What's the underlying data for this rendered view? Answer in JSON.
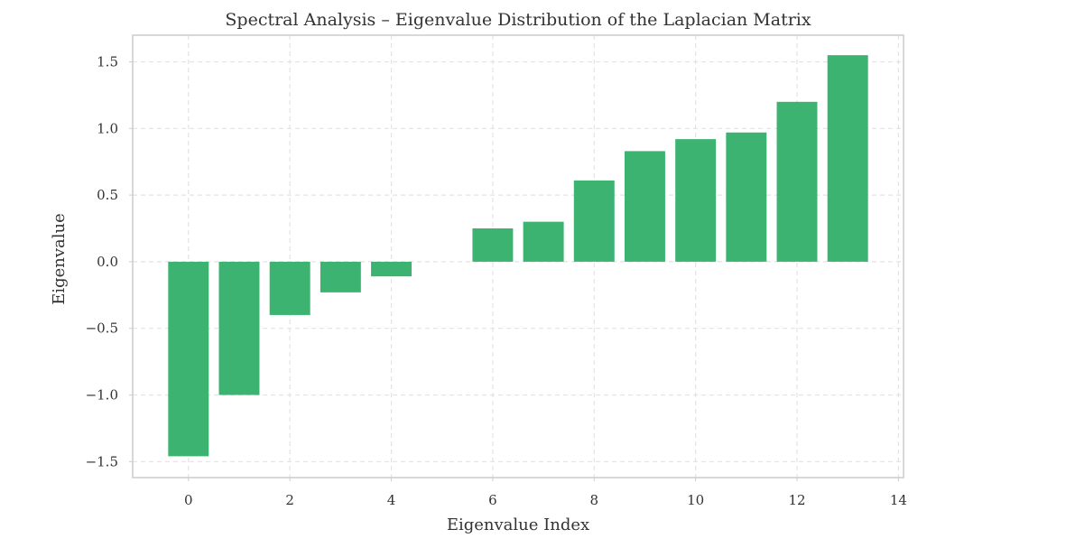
{
  "chart_data": {
    "type": "bar",
    "title": "Spectral Analysis – Eigenvalue Distribution of the Laplacian Matrix",
    "xlabel": "Eigenvalue Index",
    "ylabel": "Eigenvalue",
    "x": [
      0,
      1,
      2,
      3,
      4,
      5,
      6,
      7,
      8,
      9,
      10,
      11,
      12,
      13
    ],
    "values": [
      -1.46,
      -1.0,
      -0.4,
      -0.23,
      -0.11,
      0.0,
      0.25,
      0.3,
      0.61,
      0.83,
      0.92,
      0.97,
      1.2,
      1.55
    ],
    "xlim": [
      -1.1,
      14.1
    ],
    "ylim": [
      -1.62,
      1.7
    ],
    "xticks": [
      0,
      2,
      4,
      6,
      8,
      10,
      12,
      14
    ],
    "xtick_labels": [
      "0",
      "2",
      "4",
      "6",
      "8",
      "10",
      "12",
      "14"
    ],
    "yticks": [
      -1.5,
      -1.0,
      -0.5,
      0.0,
      0.5,
      1.0,
      1.5
    ],
    "ytick_labels": [
      "−1.5",
      "−1.0",
      "−0.5",
      "0.0",
      "0.5",
      "1.0",
      "1.5"
    ],
    "bar_color": "#3cb371",
    "grid": true,
    "legend": "none"
  }
}
